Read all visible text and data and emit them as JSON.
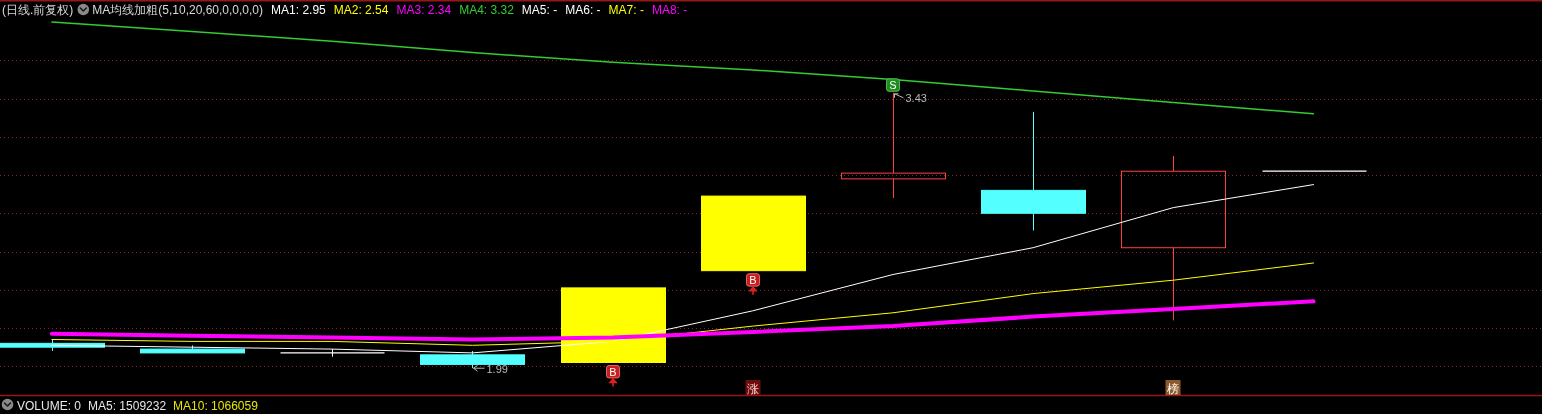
{
  "chart_data": {
    "type": "candlestick",
    "title": "(日线.前复权)",
    "legend_title": "MA均线加粗(5,10,20,60,0,0,0,0)",
    "categories": [
      null,
      null,
      null,
      null,
      null,
      null,
      null,
      null,
      null,
      null
    ],
    "ohlc": [
      [
        2.12,
        2.14,
        2.08,
        2.1
      ],
      [
        2.09,
        2.11,
        2.07,
        2.07
      ],
      [
        2.07,
        2.09,
        2.05,
        2.07
      ],
      [
        2.06,
        2.08,
        1.99,
        2.01
      ],
      [
        2.02,
        2.41,
        2.02,
        2.41
      ],
      [
        2.5,
        2.89,
        2.5,
        2.89
      ],
      [
        2.98,
        3.43,
        2.88,
        3.01
      ],
      [
        2.92,
        3.33,
        2.71,
        2.8
      ],
      [
        2.62,
        3.1,
        2.24,
        3.02
      ],
      [
        3.02,
        3.02,
        3.02,
        3.02
      ]
    ],
    "colors": [
      "#54ffff",
      "#54ffff",
      "#ffffff",
      "#54ffff",
      "#ffff00",
      "#ffff00",
      "#ff4040",
      "#54ffff",
      "#ff4040",
      "#ffffff"
    ],
    "series": [
      {
        "name": "MA1: 2.95",
        "type": "line",
        "color": "#ffffff",
        "values": [
          2.11,
          2.1,
          2.09,
          2.07,
          2.13,
          2.29,
          2.48,
          2.62,
          2.83,
          2.95
        ]
      },
      {
        "name": "MA2: 2.54",
        "type": "line",
        "color": "#ffff00",
        "values": [
          2.14,
          2.13,
          2.13,
          2.11,
          2.13,
          2.21,
          2.28,
          2.38,
          2.45,
          2.54
        ]
      },
      {
        "name": "MA3: 2.34",
        "type": "line",
        "color": "#ff00ff",
        "values": [
          2.17,
          2.16,
          2.15,
          2.14,
          2.15,
          2.18,
          2.21,
          2.26,
          2.3,
          2.34
        ]
      },
      {
        "name": "MA4: 3.32",
        "type": "line",
        "color": "#33cc33",
        "values": [
          3.8,
          3.75,
          3.7,
          3.64,
          3.59,
          3.55,
          3.5,
          3.44,
          3.38,
          3.32
        ]
      },
      {
        "name": "MA5: -",
        "type": "line",
        "color": "#ffffff",
        "values": [
          null,
          null,
          null,
          null,
          null,
          null,
          null,
          null,
          null,
          null
        ]
      },
      {
        "name": "MA6: -",
        "type": "line",
        "color": "#ffffff",
        "values": [
          null,
          null,
          null,
          null,
          null,
          null,
          null,
          null,
          null,
          null
        ]
      },
      {
        "name": "MA7: -",
        "type": "line",
        "color": "#ffff00",
        "values": [
          null,
          null,
          null,
          null,
          null,
          null,
          null,
          null,
          null,
          null
        ]
      },
      {
        "name": "MA8: -",
        "type": "line",
        "color": "#ff00ff",
        "values": [
          null,
          null,
          null,
          null,
          null,
          null,
          null,
          null,
          null,
          null
        ]
      }
    ],
    "ylim": [
      1.85,
      3.91
    ],
    "yticks": [
      {
        "value": 2.0,
        "label": null
      },
      {
        "value": 2.2,
        "label": null
      },
      {
        "value": 2.4,
        "label": null
      },
      {
        "value": 2.6,
        "label": null
      },
      {
        "value": 2.8,
        "label": null
      },
      {
        "value": 3.0,
        "label": null
      },
      {
        "value": 3.2,
        "label": null
      },
      {
        "value": 3.4,
        "label": null
      },
      {
        "value": 3.6,
        "label": null
      }
    ],
    "grid": "y",
    "legend": "top left",
    "annotations": [
      "3.43",
      "1.99",
      {
        "text": "B",
        "y": 2.02
      },
      {
        "text": "B",
        "y": 2.5
      },
      {
        "text": "S",
        "y": 3.43
      },
      "涨",
      "榜",
      "VOLUME: 0",
      "MA5: 1509232",
      "MA10: 1066059"
    ]
  }
}
